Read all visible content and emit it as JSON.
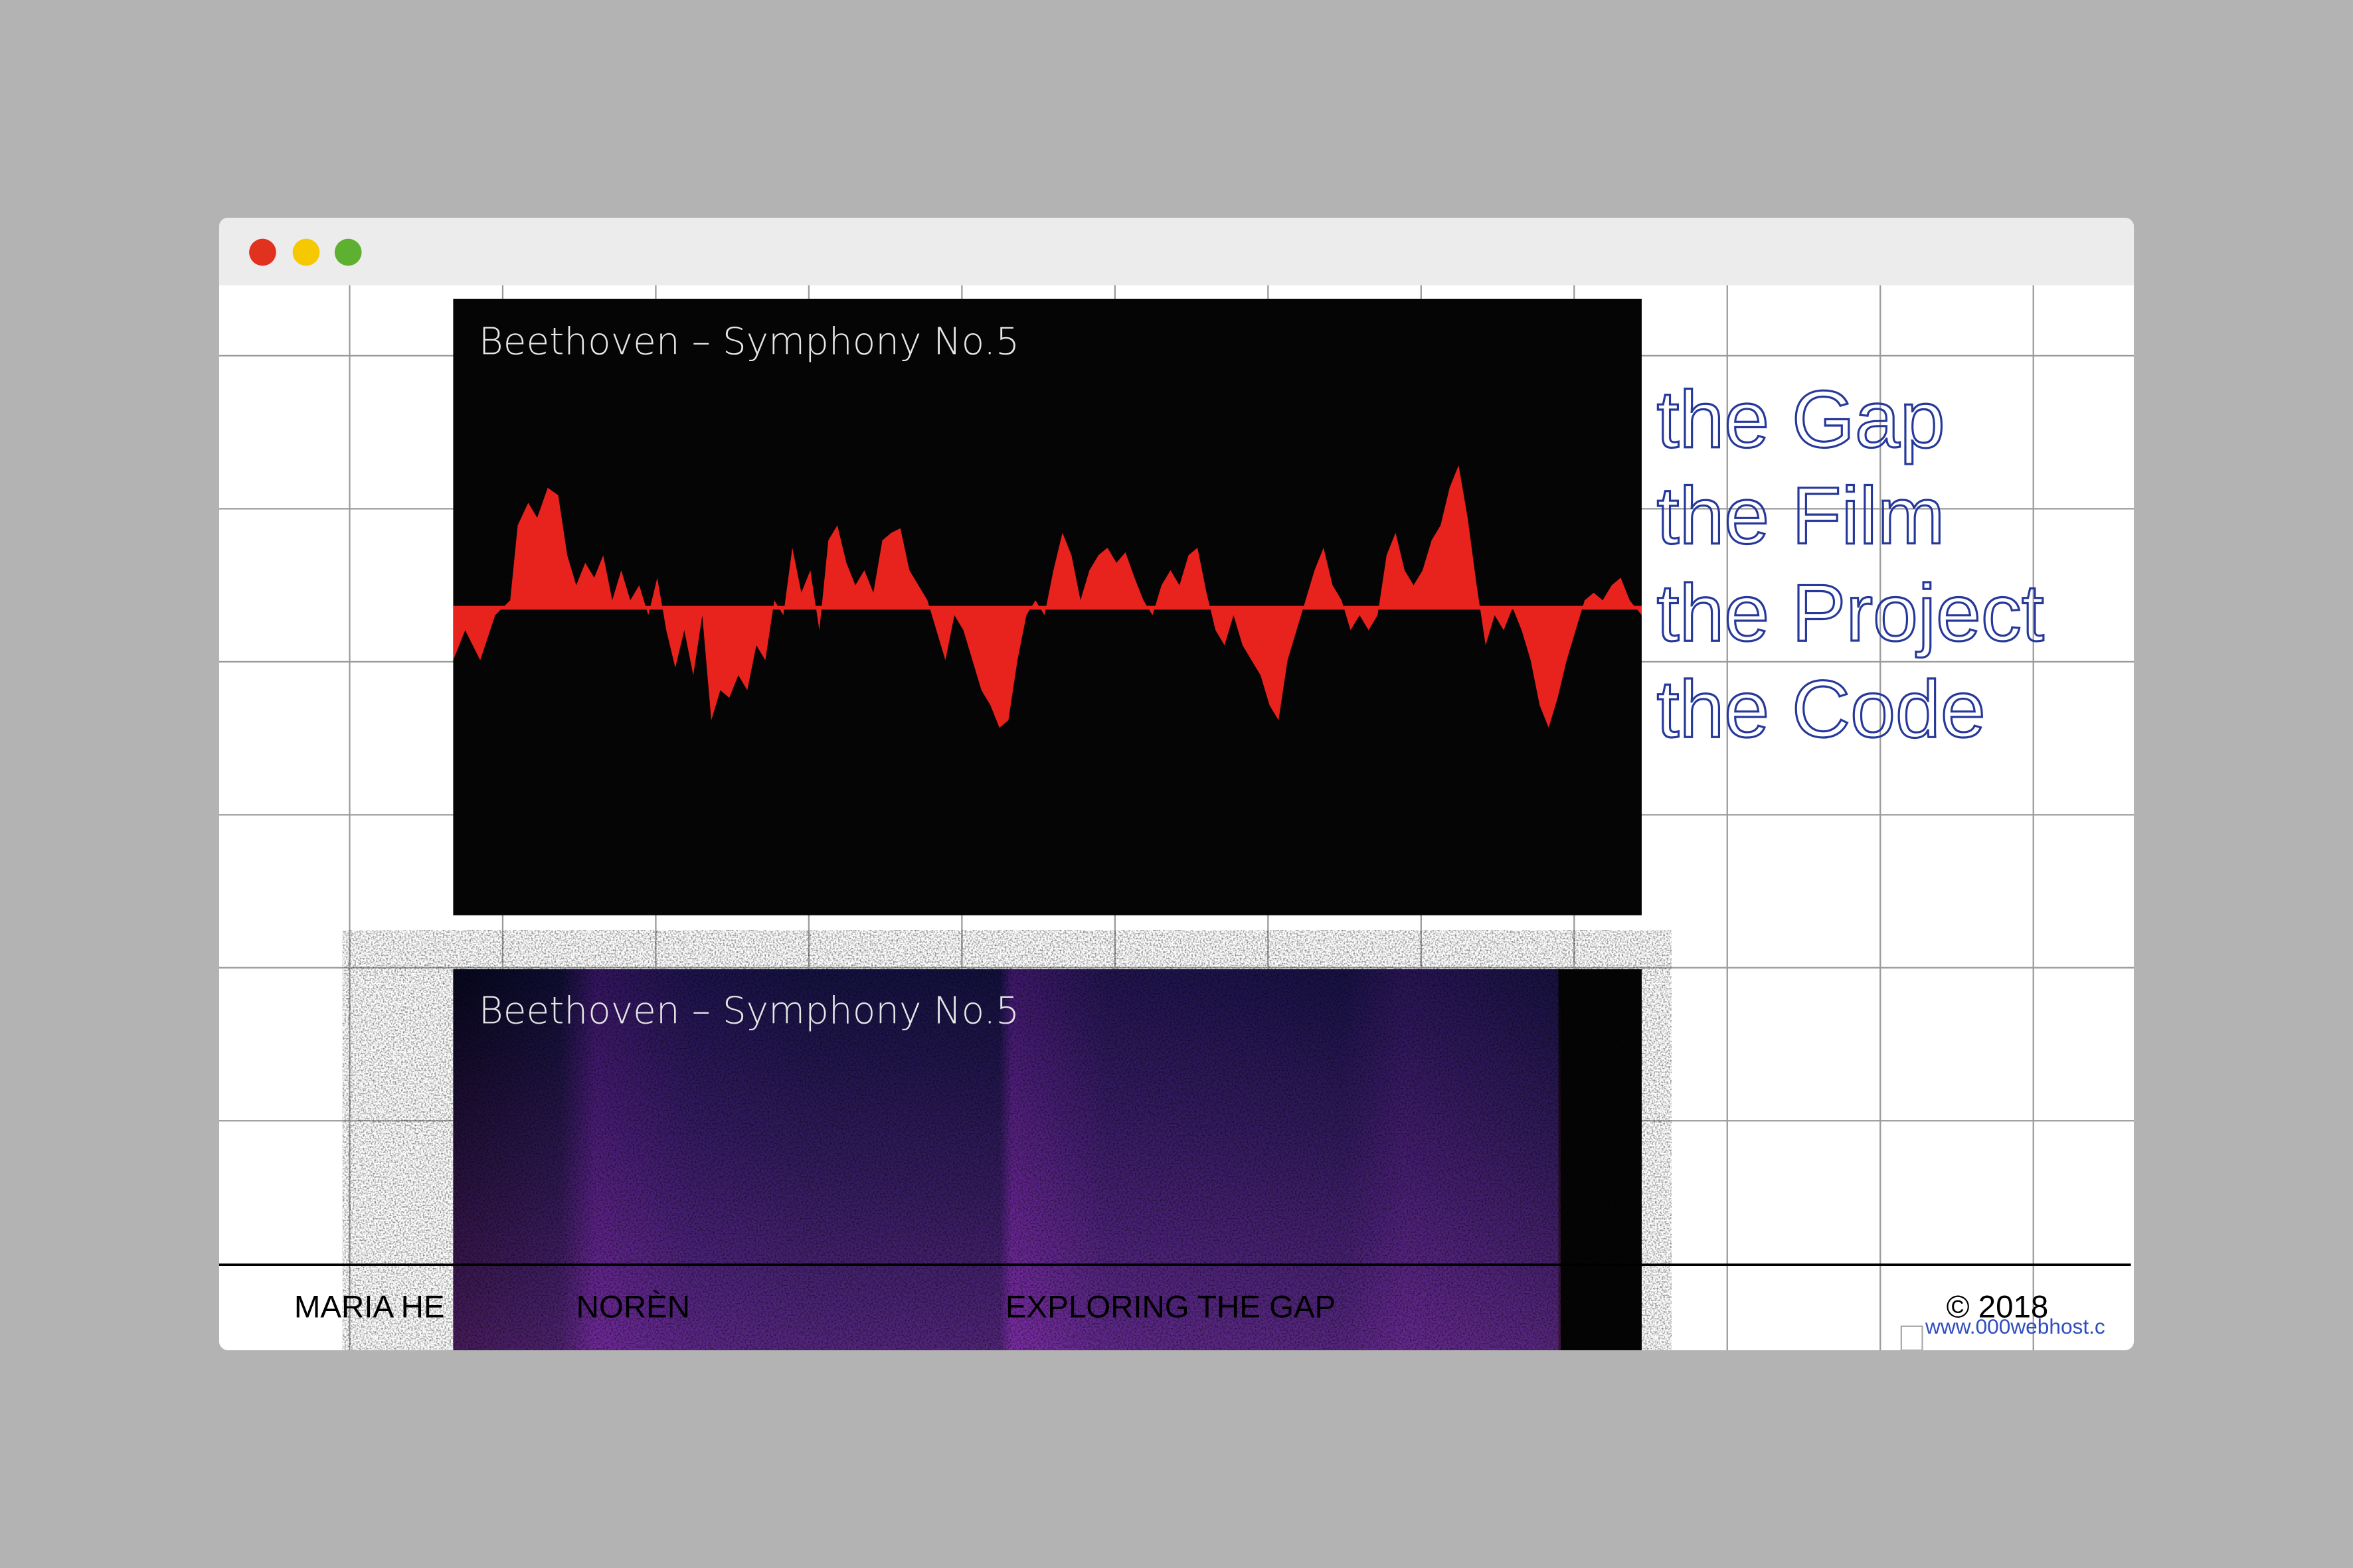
{
  "image_caption": "Beethoven – Symphony No.5",
  "spectrogram_caption": "Beethoven – Symphony No.5",
  "nav": [
    "the Gap",
    "the Film",
    "the Project",
    "the Code"
  ],
  "footer": {
    "name_start": "MARIA HE",
    "name_end": "NORÈN",
    "tagline": "EXPLORING THE GAP",
    "copyright": "© 2018",
    "host_link": "www.000webhost.c"
  }
}
